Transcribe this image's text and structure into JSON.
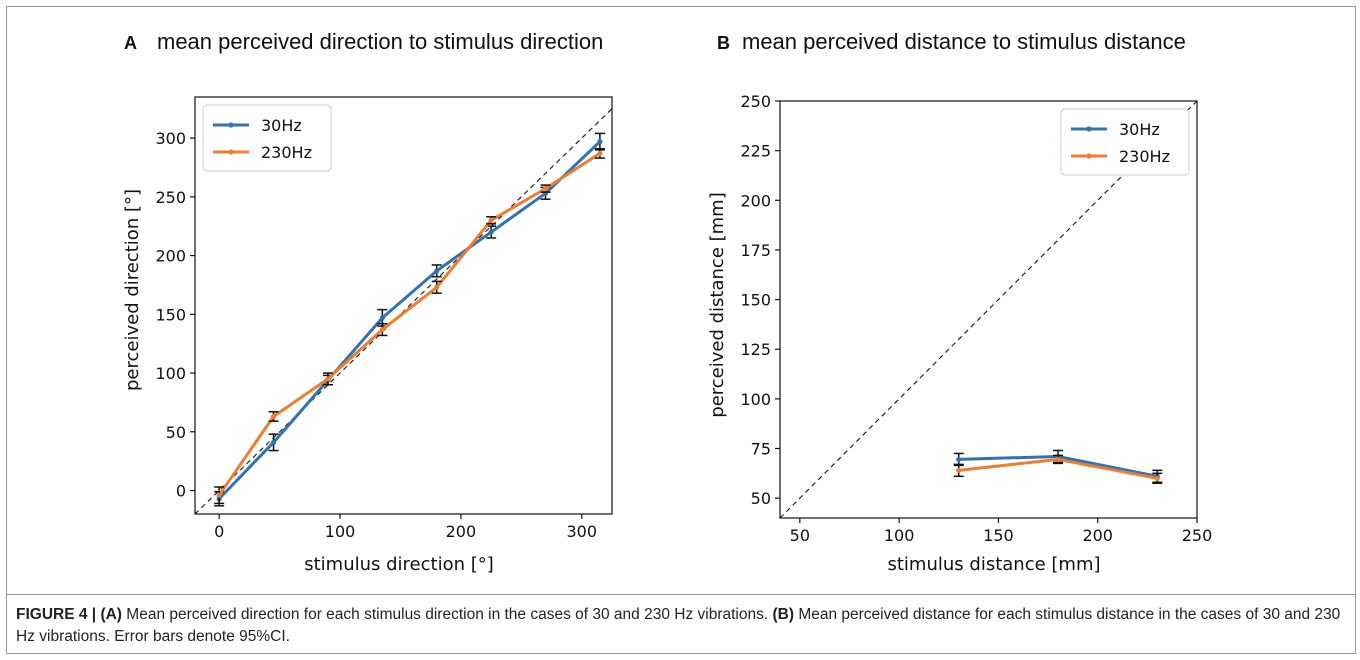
{
  "caption": {
    "label": "FIGURE 4 |",
    "a_tag": "(A)",
    "a_text": " Mean perceived direction for each stimulus direction in the cases of 30 and 230 Hz vibrations. ",
    "b_tag": "(B)",
    "b_text": " Mean perceived distance for each stimulus distance in the cases of 30 and 230 Hz vibrations. Error bars denote 95%CI."
  },
  "chart_data": [
    {
      "type": "line",
      "panel_letter": "A",
      "title": "mean perceived direction to stimulus direction",
      "xlabel": "stimulus direction [°]",
      "ylabel": "perceived direction [°]",
      "xlim": [
        -20,
        325
      ],
      "ylim": [
        -20,
        335
      ],
      "xticks": [
        0,
        100,
        200,
        300
      ],
      "yticks": [
        0,
        50,
        100,
        150,
        200,
        250,
        300
      ],
      "legend": "top-left",
      "reference_line": "diagonal dashed (y = x)",
      "x": [
        0,
        45,
        90,
        135,
        180,
        225,
        270,
        315
      ],
      "series": [
        {
          "name": "30Hz",
          "color": "#2e73b5",
          "values": [
            -7,
            41,
            94,
            147,
            187,
            220,
            253,
            297
          ],
          "err": [
            6,
            7,
            4,
            7,
            5,
            5,
            5,
            7
          ]
        },
        {
          "name": "230Hz",
          "color": "#f07d2e",
          "values": [
            -4,
            63,
            95,
            137,
            173,
            230,
            257,
            287
          ],
          "err": [
            7,
            4,
            5,
            5,
            5,
            3,
            3,
            4
          ]
        }
      ]
    },
    {
      "type": "line",
      "panel_letter": "B",
      "title": "mean perceived distance to stimulus distance",
      "xlabel": "stimulus distance [mm]",
      "ylabel": "perceived distance [mm]",
      "xlim": [
        40,
        250
      ],
      "ylim": [
        40,
        250
      ],
      "xticks": [
        50,
        100,
        150,
        200,
        250
      ],
      "yticks": [
        50,
        75,
        100,
        125,
        150,
        175,
        200,
        225,
        250
      ],
      "legend": "top-right",
      "reference_line": "diagonal dashed (y = x)",
      "x": [
        130,
        180,
        230
      ],
      "series": [
        {
          "name": "30Hz",
          "color": "#2e73b5",
          "values": [
            69.5,
            71,
            61
          ],
          "err": [
            3,
            3,
            3
          ]
        },
        {
          "name": "230Hz",
          "color": "#f07d2e",
          "values": [
            64,
            69.5,
            60
          ],
          "err": [
            3,
            2,
            2.5
          ]
        }
      ]
    }
  ]
}
